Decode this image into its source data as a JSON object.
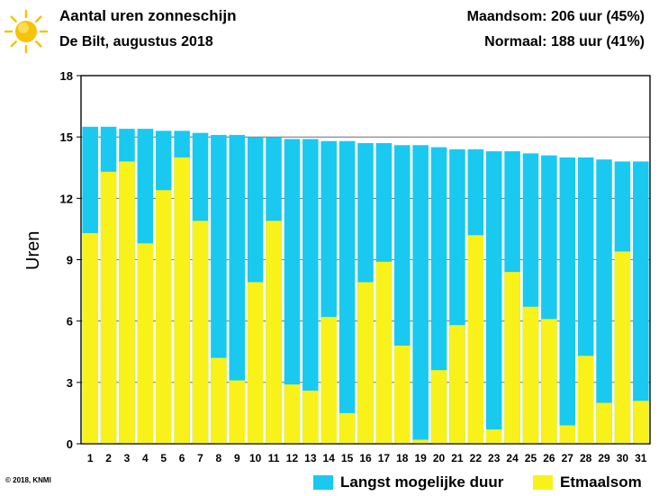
{
  "header": {
    "title": "Aantal uren zonneschijn",
    "subtitle": "De Bilt, augustus 2018",
    "maandsom": "Maandsom: 206 uur (45%)",
    "normaal": "Normaal: 188 uur (41%)",
    "icon": "sun-icon"
  },
  "footer": {
    "copyright": "© 2018, KNMI"
  },
  "colors": {
    "max": "#19c9f0",
    "actual": "#f8f21a",
    "sun": "#f6c20a"
  },
  "chart_data": {
    "type": "bar",
    "title": "Aantal uren zonneschijn",
    "subtitle": "De Bilt, augustus 2018",
    "ylabel": "Uren",
    "xlabel": "",
    "ylim": [
      0,
      18
    ],
    "yticks": [
      0,
      3,
      6,
      9,
      12,
      15,
      18
    ],
    "grid": true,
    "legend_position": "bottom-right",
    "categories": [
      "1",
      "2",
      "3",
      "4",
      "5",
      "6",
      "7",
      "8",
      "9",
      "10",
      "11",
      "12",
      "13",
      "14",
      "15",
      "16",
      "17",
      "18",
      "19",
      "20",
      "21",
      "22",
      "23",
      "24",
      "25",
      "26",
      "27",
      "28",
      "29",
      "30",
      "31"
    ],
    "series": [
      {
        "name": "Langst mogelijke duur",
        "values": [
          15.5,
          15.5,
          15.4,
          15.4,
          15.3,
          15.3,
          15.2,
          15.1,
          15.1,
          15.0,
          15.0,
          14.9,
          14.9,
          14.8,
          14.8,
          14.7,
          14.7,
          14.6,
          14.6,
          14.5,
          14.4,
          14.4,
          14.3,
          14.3,
          14.2,
          14.1,
          14.0,
          14.0,
          13.9,
          13.8,
          13.8
        ]
      },
      {
        "name": "Etmaalsom",
        "values": [
          10.3,
          13.3,
          13.8,
          9.8,
          12.4,
          14.0,
          10.9,
          4.2,
          3.1,
          7.9,
          10.9,
          2.9,
          2.6,
          6.2,
          1.5,
          7.9,
          8.9,
          4.8,
          0.2,
          3.6,
          5.8,
          10.2,
          0.7,
          8.4,
          6.7,
          6.1,
          0.9,
          4.3,
          2.0,
          9.4,
          2.1
        ]
      }
    ]
  }
}
